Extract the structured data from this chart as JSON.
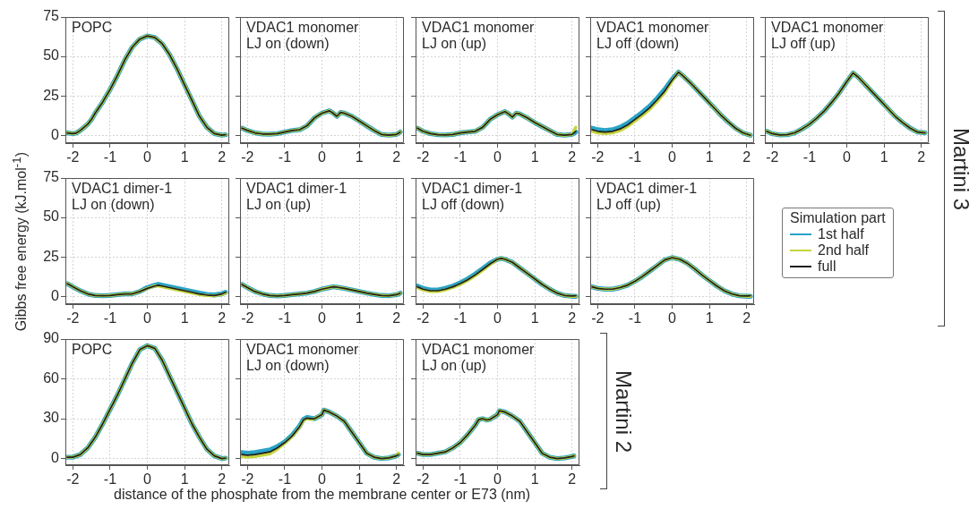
{
  "chart_data": [
    {
      "type": "line",
      "title": "POPC",
      "x": [
        -2.15,
        -2,
        -1.9,
        -1.8,
        -1.6,
        -1.5,
        -1.4,
        -1.2,
        -1,
        -0.8,
        -0.6,
        -0.4,
        -0.2,
        0,
        0.2,
        0.4,
        0.6,
        0.8,
        1,
        1.2,
        1.4,
        1.6,
        1.8,
        2,
        2.1
      ],
      "xlim": [
        -2.2,
        2.2
      ],
      "xticks": [
        -2,
        -1,
        0,
        1,
        2
      ],
      "ylim": [
        -5,
        75
      ],
      "yticks": [
        0,
        25,
        50,
        75
      ],
      "grid": true,
      "series": [
        {
          "color": "#29a3c6",
          "values": [
            1.5,
            1,
            1.5,
            3,
            7,
            10,
            14,
            21,
            29,
            38,
            48,
            56,
            61,
            63,
            62,
            58,
            51,
            42,
            32,
            22,
            12,
            5,
            1,
            0,
            0.3
          ]
        },
        {
          "color": "#c5d43c",
          "values": [
            1.5,
            1,
            1.5,
            3,
            7,
            10,
            14,
            21,
            29,
            38,
            48,
            56,
            61,
            63,
            62,
            58,
            51,
            42,
            32,
            22,
            12,
            5,
            1,
            0,
            0.3
          ]
        },
        {
          "color": "#1e1e1e",
          "values": [
            1.5,
            1,
            1.5,
            3,
            7,
            10,
            14,
            21,
            29,
            38,
            48,
            56,
            61,
            63,
            62,
            58,
            51,
            42,
            32,
            22,
            12,
            5,
            1,
            0,
            0.3
          ]
        }
      ]
    },
    {
      "type": "line",
      "title": "VDAC1 monomer\nLJ on (down)",
      "x": [
        -2.15,
        -2,
        -1.8,
        -1.6,
        -1.4,
        -1.2,
        -1,
        -0.8,
        -0.6,
        -0.4,
        -0.2,
        0,
        0.2,
        0.3,
        0.4,
        0.5,
        0.6,
        0.8,
        1,
        1.2,
        1.4,
        1.6,
        1.8,
        2,
        2.1
      ],
      "xlim": [
        -2.2,
        2.2
      ],
      "xticks": [
        -2,
        -1,
        0,
        1,
        2
      ],
      "ylim": [
        -5,
        75
      ],
      "yticks": [
        0,
        25,
        50,
        75
      ],
      "grid": true,
      "tick_labels": "x",
      "series": [
        {
          "color": "#29a3c6",
          "values": [
            4.5,
            3,
            1.5,
            0.8,
            0.7,
            1,
            2,
            3,
            3.5,
            6,
            11,
            14,
            15.5,
            14,
            12,
            14.5,
            14,
            12,
            9,
            6,
            3,
            0.5,
            0,
            0.5,
            2
          ]
        },
        {
          "color": "#c5d43c",
          "values": [
            4.5,
            3,
            1.5,
            0.8,
            0.7,
            1,
            2,
            3,
            3.5,
            6,
            11,
            14,
            15.5,
            14,
            12,
            14.5,
            14,
            12,
            9,
            6,
            3,
            0.5,
            0,
            0.5,
            2
          ]
        },
        {
          "color": "#1e1e1e",
          "values": [
            4.5,
            3,
            1.5,
            0.8,
            0.7,
            1,
            2,
            3,
            3.5,
            6,
            11,
            14,
            15.5,
            14,
            12,
            14.5,
            14,
            12,
            9,
            6,
            3,
            0.5,
            0,
            0.5,
            2
          ]
        }
      ]
    },
    {
      "type": "line",
      "title": "VDAC1 monomer\nLJ on (up)",
      "x": [
        -2.15,
        -2,
        -1.8,
        -1.6,
        -1.4,
        -1.2,
        -1,
        -0.8,
        -0.6,
        -0.4,
        -0.2,
        0,
        0.2,
        0.3,
        0.4,
        0.5,
        0.6,
        0.8,
        1,
        1.2,
        1.4,
        1.6,
        1.8,
        2,
        2.1
      ],
      "xlim": [
        -2.2,
        2.2
      ],
      "xticks": [
        -2,
        -1,
        0,
        1,
        2
      ],
      "ylim": [
        -5,
        75
      ],
      "yticks": [
        0,
        25,
        50,
        75
      ],
      "grid": true,
      "tick_labels": "x",
      "series": [
        {
          "color": "#29a3c6",
          "values": [
            4.5,
            2.5,
            1,
            0.3,
            0.2,
            0.5,
            1.5,
            2,
            2.5,
            5,
            10,
            13,
            15,
            13.5,
            11.5,
            14,
            13.5,
            11,
            8,
            5.5,
            3,
            0.5,
            0,
            0.5,
            2
          ]
        },
        {
          "color": "#c5d43c",
          "values": [
            4.5,
            2.5,
            1,
            0.3,
            0.2,
            0.5,
            1.5,
            2,
            2.5,
            5,
            10,
            13,
            15,
            13.5,
            11.5,
            14,
            13.5,
            11,
            8,
            5.5,
            3,
            0.5,
            0,
            0.5,
            5
          ]
        },
        {
          "color": "#1e1e1e",
          "values": [
            4.5,
            2.5,
            1,
            0.3,
            0.2,
            0.5,
            1.5,
            2,
            2.5,
            5,
            10,
            13,
            15,
            13.5,
            11.5,
            14,
            13.5,
            11,
            8,
            5.5,
            3,
            0.5,
            0,
            0.5,
            2.5
          ]
        }
      ]
    },
    {
      "type": "line",
      "title": "VDAC1 monomer\nLJ off (down)",
      "x": [
        -2.15,
        -2,
        -1.8,
        -1.6,
        -1.4,
        -1.2,
        -1,
        -0.8,
        -0.6,
        -0.4,
        -0.2,
        0,
        0.17,
        0.3,
        0.5,
        0.7,
        0.9,
        1.1,
        1.3,
        1.5,
        1.7,
        1.9,
        2.1
      ],
      "xlim": [
        -2.2,
        2.2
      ],
      "xticks": [
        -2,
        -1,
        0,
        1,
        2
      ],
      "ylim": [
        -5,
        75
      ],
      "yticks": [
        0,
        25,
        50,
        75
      ],
      "grid": true,
      "tick_labels": "x",
      "series": [
        {
          "color": "#29a3c6",
          "values": [
            4.5,
            3.5,
            3,
            3.5,
            5,
            7.5,
            11,
            14.5,
            18.5,
            23.5,
            29,
            35.5,
            40,
            37.5,
            33,
            28,
            23,
            18,
            13,
            8.5,
            4.5,
            1.5,
            0
          ]
        },
        {
          "color": "#c5d43c",
          "values": [
            2.5,
            1.5,
            1,
            1.5,
            3,
            5.5,
            9,
            12.5,
            16.5,
            21.5,
            27,
            34.5,
            40,
            37.5,
            33,
            28,
            23,
            18,
            13,
            8.5,
            4.5,
            1.5,
            0
          ]
        },
        {
          "color": "#1e1e1e",
          "values": [
            3.5,
            2.5,
            2,
            2.5,
            4,
            6.5,
            10,
            13.5,
            17.5,
            22.5,
            28,
            35,
            40,
            37.5,
            33,
            28,
            23,
            18,
            13,
            8.5,
            4.5,
            1.5,
            0
          ]
        }
      ]
    },
    {
      "type": "line",
      "title": "VDAC1 monomer\nLJ off (up)",
      "x": [
        -2.15,
        -2,
        -1.8,
        -1.6,
        -1.4,
        -1.2,
        -1,
        -0.8,
        -0.6,
        -0.4,
        -0.2,
        0,
        0.17,
        0.3,
        0.5,
        0.7,
        0.9,
        1.1,
        1.3,
        1.5,
        1.7,
        1.9,
        2.1
      ],
      "xlim": [
        -2.2,
        2.2
      ],
      "xticks": [
        -2,
        -1,
        0,
        1,
        2
      ],
      "ylim": [
        -5,
        75
      ],
      "yticks": [
        0,
        25,
        50,
        75
      ],
      "grid": true,
      "tick_labels": "x",
      "annotations": [
        "Martini 3"
      ],
      "series": [
        {
          "color": "#29a3c6",
          "values": [
            2.5,
            1,
            0.2,
            0.3,
            1.5,
            4,
            7,
            11,
            15.5,
            21,
            27,
            34,
            39.5,
            37,
            32,
            27,
            22,
            17,
            12,
            8,
            4.5,
            2,
            1.5
          ]
        },
        {
          "color": "#c5d43c",
          "values": [
            2.5,
            1,
            0.2,
            0.3,
            1.5,
            4,
            7,
            11,
            15.5,
            21,
            27,
            34,
            39.5,
            37,
            32,
            27,
            22,
            17,
            12,
            8,
            4.5,
            2,
            1.5
          ]
        },
        {
          "color": "#1e1e1e",
          "values": [
            2.5,
            1,
            0.2,
            0.3,
            1.5,
            4,
            7,
            11,
            15.5,
            21,
            27,
            34,
            39.5,
            37,
            32,
            27,
            22,
            17,
            12,
            8,
            4.5,
            2,
            1.5
          ]
        }
      ]
    },
    {
      "type": "line",
      "title": "VDAC1 dimer-1\nLJ on (down)",
      "ylabel": "Gibbs free energy (kJ.mol$^{-1}$)",
      "x": [
        -2.15,
        -2,
        -1.8,
        -1.6,
        -1.4,
        -1.2,
        -1,
        -0.8,
        -0.6,
        -0.4,
        -0.2,
        0,
        0.2,
        0.3,
        0.4,
        0.6,
        0.8,
        1,
        1.2,
        1.4,
        1.6,
        1.8,
        2,
        2.1
      ],
      "xlim": [
        -2.2,
        2.2
      ],
      "xticks": [
        -2,
        -1,
        0,
        1,
        2
      ],
      "ylim": [
        -5,
        75
      ],
      "yticks": [
        0,
        25,
        50,
        75
      ],
      "grid": true,
      "series": [
        {
          "color": "#29a3c6",
          "values": [
            8,
            6,
            3.5,
            1.5,
            0.5,
            0.3,
            0.5,
            1,
            1.5,
            1.5,
            3,
            5.5,
            7,
            7.5,
            7,
            6,
            5,
            4,
            3,
            2,
            1.2,
            0.8,
            1.5,
            2.5
          ]
        },
        {
          "color": "#c5d43c",
          "values": [
            8,
            6,
            3.5,
            1.5,
            0.5,
            0.3,
            0.5,
            1,
            1.5,
            1.5,
            3,
            5,
            6.5,
            6.5,
            6,
            5,
            4,
            3,
            2,
            1,
            0.5,
            0.3,
            1.2,
            2
          ]
        },
        {
          "color": "#1e1e1e",
          "values": [
            8,
            6,
            3.5,
            1.5,
            0.5,
            0.3,
            0.5,
            1,
            1.5,
            1.5,
            3,
            5,
            6.5,
            7,
            6.5,
            5.5,
            4.5,
            3.5,
            2.5,
            1.5,
            0.8,
            0.5,
            1.5,
            2.5
          ]
        }
      ]
    },
    {
      "type": "line",
      "title": "VDAC1 dimer-1\nLJ on (up)",
      "x": [
        -2.15,
        -2,
        -1.8,
        -1.6,
        -1.4,
        -1.2,
        -1,
        -0.8,
        -0.6,
        -0.4,
        -0.2,
        0,
        0.2,
        0.3,
        0.4,
        0.6,
        0.8,
        1,
        1.2,
        1.4,
        1.6,
        1.8,
        2,
        2.1
      ],
      "xlim": [
        -2.2,
        2.2
      ],
      "xticks": [
        -2,
        -1,
        0,
        1,
        2
      ],
      "ylim": [
        -5,
        75
      ],
      "yticks": [
        0,
        25,
        50,
        75
      ],
      "grid": true,
      "tick_labels": "x",
      "series": [
        {
          "color": "#29a3c6",
          "values": [
            7.5,
            5.5,
            3,
            1.5,
            0.5,
            0.2,
            0.5,
            1,
            1.5,
            2,
            3,
            4.5,
            5.5,
            6,
            5.8,
            5,
            4,
            3,
            2,
            1.2,
            0.5,
            0.3,
            1,
            2
          ]
        },
        {
          "color": "#c5d43c",
          "values": [
            7.5,
            5.5,
            3,
            1.5,
            0.5,
            0.2,
            0.5,
            1,
            1.5,
            2,
            3,
            4.5,
            5.5,
            6,
            5.8,
            5,
            4,
            3,
            2,
            1.2,
            0.5,
            0.3,
            1,
            2
          ]
        },
        {
          "color": "#1e1e1e",
          "values": [
            7.5,
            5.5,
            3,
            1.5,
            0.5,
            0.2,
            0.5,
            1,
            1.5,
            2,
            3,
            4.5,
            5.5,
            6,
            5.8,
            5,
            4,
            3,
            2,
            1.2,
            0.5,
            0.3,
            1,
            2
          ]
        }
      ]
    },
    {
      "type": "line",
      "title": "VDAC1 dimer-1\nLJ off (down)",
      "x": [
        -2.15,
        -2,
        -1.8,
        -1.6,
        -1.4,
        -1.2,
        -1,
        -0.8,
        -0.6,
        -0.4,
        -0.2,
        0,
        0.1,
        0.2,
        0.4,
        0.6,
        0.8,
        1,
        1.2,
        1.4,
        1.6,
        1.8,
        2,
        2.1
      ],
      "xlim": [
        -2.2,
        2.2
      ],
      "xticks": [
        -2,
        -1,
        0,
        1,
        2
      ],
      "ylim": [
        -5,
        75
      ],
      "yticks": [
        0,
        25,
        50,
        75
      ],
      "grid": true,
      "tick_labels": "x",
      "series": [
        {
          "color": "#29a3c6",
          "values": [
            6.5,
            5,
            4,
            4,
            5,
            6.5,
            8.5,
            11,
            14,
            17.5,
            21,
            23.5,
            24,
            23.5,
            21.5,
            18,
            14.5,
            11,
            7.5,
            4.5,
            2,
            0.5,
            0,
            0
          ]
        },
        {
          "color": "#c5d43c",
          "values": [
            5.5,
            4,
            3,
            3,
            4,
            5.5,
            7.5,
            10,
            13,
            16.5,
            20,
            23.5,
            24,
            23.5,
            21.5,
            18,
            14.5,
            11,
            7.5,
            4.5,
            2,
            0.5,
            0,
            0
          ]
        },
        {
          "color": "#1e1e1e",
          "values": [
            6,
            4.5,
            3.5,
            3.5,
            4.5,
            6,
            8,
            10.5,
            13.5,
            17,
            20.5,
            23.5,
            24,
            23.5,
            21.5,
            18,
            14.5,
            11,
            7.5,
            4.5,
            2,
            0.5,
            0.2,
            0.3
          ]
        }
      ]
    },
    {
      "type": "line",
      "title": "VDAC1 dimer-1\nLJ off (up)",
      "x": [
        -2.15,
        -2,
        -1.8,
        -1.6,
        -1.4,
        -1.2,
        -1,
        -0.8,
        -0.6,
        -0.4,
        -0.2,
        0,
        0.2,
        0.4,
        0.6,
        0.8,
        1,
        1.2,
        1.4,
        1.6,
        1.8,
        2,
        2.1
      ],
      "xlim": [
        -2.2,
        2.2
      ],
      "xticks": [
        -2,
        -1,
        0,
        1,
        2
      ],
      "ylim": [
        -5,
        75
      ],
      "yticks": [
        0,
        25,
        50,
        75
      ],
      "grid": true,
      "tick_labels": "x",
      "legend": "right",
      "legend_title": "Simulation part",
      "series": [
        {
          "name": "1st half",
          "color": "#29a3c6",
          "values": [
            6,
            5,
            4.5,
            4.5,
            5.5,
            7,
            9.5,
            12.5,
            16,
            19.5,
            23,
            24.5,
            23.5,
            21,
            17.5,
            13.5,
            10,
            6.5,
            3.5,
            1.5,
            0.3,
            0,
            0
          ]
        },
        {
          "name": "2nd half",
          "color": "#c5d43c",
          "values": [
            6,
            5,
            4.5,
            4.5,
            5.5,
            7,
            9.5,
            12.5,
            16,
            19.5,
            23,
            24.5,
            23.5,
            21,
            17.5,
            13.5,
            10,
            6.5,
            3.5,
            1.5,
            0.3,
            0,
            0
          ]
        },
        {
          "name": "full",
          "color": "#1e1e1e",
          "values": [
            6,
            5,
            4.5,
            4.5,
            5.5,
            7,
            9.5,
            12.5,
            16,
            19.5,
            23,
            24.5,
            23.5,
            21,
            17.5,
            13.5,
            10,
            6.5,
            3.5,
            1.5,
            0.3,
            0.2,
            0.3
          ]
        }
      ]
    },
    {
      "type": "line",
      "title": "POPC",
      "x": [
        -2.15,
        -2,
        -1.8,
        -1.6,
        -1.4,
        -1.2,
        -1,
        -0.8,
        -0.6,
        -0.4,
        -0.2,
        0,
        0.2,
        0.4,
        0.6,
        0.8,
        1,
        1.2,
        1.4,
        1.6,
        1.8,
        2,
        2.1
      ],
      "xlim": [
        -2.2,
        2.2
      ],
      "xticks": [
        -2,
        -1,
        0,
        1,
        2
      ],
      "ylim": [
        -5,
        90
      ],
      "yticks": [
        0,
        30,
        60,
        90
      ],
      "grid": true,
      "series": [
        {
          "color": "#29a3c6",
          "values": [
            1,
            1,
            3,
            8,
            16,
            26,
            37,
            48,
            60,
            72,
            82,
            85,
            83,
            74,
            62,
            50,
            38,
            26,
            16,
            7,
            2,
            0,
            0.3
          ]
        },
        {
          "color": "#c5d43c",
          "values": [
            1,
            1,
            3,
            8,
            16,
            26,
            37,
            48,
            60,
            72,
            82,
            85,
            83,
            74,
            62,
            50,
            38,
            26,
            16,
            7,
            2,
            0,
            0.3
          ]
        },
        {
          "color": "#1e1e1e",
          "values": [
            1,
            1,
            3,
            8,
            16,
            26,
            37,
            48,
            60,
            72,
            82,
            85,
            83,
            74,
            62,
            50,
            38,
            26,
            16,
            7,
            2,
            0,
            0.3
          ]
        }
      ]
    },
    {
      "type": "line",
      "title": "VDAC1 monomer\nLJ on (down)",
      "xlabel": "distance of the phosphate from the membrane center or E73 (nm)",
      "x": [
        -2.15,
        -2,
        -1.8,
        -1.6,
        -1.4,
        -1.2,
        -1,
        -0.8,
        -0.6,
        -0.5,
        -0.4,
        -0.3,
        -0.2,
        0,
        0.05,
        0.2,
        0.4,
        0.6,
        0.8,
        1,
        1.2,
        1.4,
        1.6,
        1.8,
        2,
        2.05
      ],
      "xlim": [
        -2.2,
        2.2
      ],
      "xticks": [
        -2,
        -1,
        0,
        1,
        2
      ],
      "ylim": [
        -5,
        90
      ],
      "yticks": [
        0,
        30,
        60,
        90
      ],
      "grid": true,
      "tick_labels": "x",
      "series": [
        {
          "color": "#29a3c6",
          "values": [
            4.5,
            4,
            4.5,
            5.5,
            6.5,
            9,
            12.5,
            17.5,
            24.5,
            29.5,
            31,
            30.5,
            30,
            33,
            36.5,
            35,
            32,
            28,
            20,
            12,
            4,
            1,
            0,
            0.5,
            2,
            3
          ]
        },
        {
          "color": "#c5d43c",
          "values": [
            1.5,
            1,
            1.5,
            2.5,
            3.5,
            7,
            11.5,
            16.5,
            23.5,
            28.5,
            30,
            29.5,
            30,
            33,
            36.5,
            35,
            32,
            28,
            20,
            12,
            4,
            1,
            0,
            0.5,
            2,
            4
          ]
        },
        {
          "color": "#1e1e1e",
          "values": [
            3,
            2.5,
            3,
            4,
            5,
            8,
            12,
            17,
            24,
            29,
            30.5,
            30,
            30,
            33,
            36.5,
            35,
            32,
            28,
            20,
            12,
            4,
            1,
            0,
            0.5,
            2,
            3
          ]
        }
      ]
    },
    {
      "type": "line",
      "title": "VDAC1 monomer\nLJ on (up)",
      "x": [
        -2.15,
        -2,
        -1.8,
        -1.6,
        -1.4,
        -1.2,
        -1,
        -0.8,
        -0.6,
        -0.5,
        -0.4,
        -0.3,
        -0.2,
        0,
        0.05,
        0.2,
        0.4,
        0.6,
        0.8,
        1,
        1.2,
        1.4,
        1.6,
        1.8,
        2,
        2.05
      ],
      "xlim": [
        -2.2,
        2.2
      ],
      "xticks": [
        -2,
        -1,
        0,
        1,
        2
      ],
      "ylim": [
        -5,
        90
      ],
      "yticks": [
        0,
        30,
        60,
        90
      ],
      "grid": true,
      "tick_labels": "x",
      "annotations": [
        "Martini 2"
      ],
      "series": [
        {
          "color": "#29a3c6",
          "values": [
            4,
            3,
            3,
            4,
            5,
            8,
            12,
            18,
            25,
            29.5,
            30,
            29,
            29.5,
            33,
            36,
            35,
            32,
            28,
            20,
            12,
            4,
            1,
            0,
            0.5,
            1.5,
            2
          ]
        },
        {
          "color": "#c5d43c",
          "values": [
            4,
            3,
            3,
            4,
            5,
            8,
            12,
            18,
            25,
            29.5,
            30,
            29,
            29.5,
            33,
            36,
            35,
            32,
            28,
            20,
            12,
            4,
            1,
            0,
            0.5,
            1.5,
            2
          ]
        },
        {
          "color": "#1e1e1e",
          "values": [
            4,
            3,
            3,
            4,
            5,
            8,
            12,
            18,
            25,
            29.5,
            30,
            29,
            29.5,
            33,
            36,
            35,
            32,
            28,
            20,
            12,
            4,
            1,
            0,
            0.5,
            1.5,
            2
          ]
        }
      ]
    }
  ]
}
